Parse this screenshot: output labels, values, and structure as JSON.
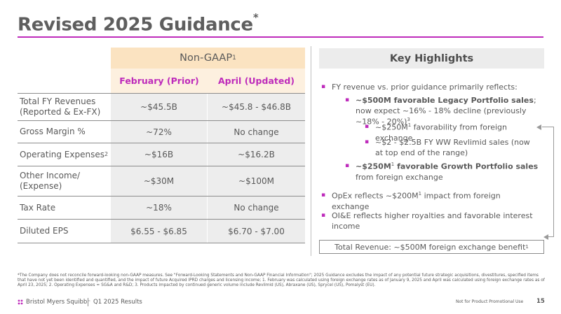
{
  "title": {
    "main": "Revised 2025 Guidance",
    "mark": "*"
  },
  "table": {
    "header_top": "Non-GAAP",
    "header_top_sup": "1",
    "col_prior": "February (Prior)",
    "col_updated": "April (Updated)",
    "rows": [
      {
        "label": "Total FY Revenues (Reported & Ex-FX)",
        "label_sup": "",
        "prior": "~$45.5B",
        "updated": "~$45.8 - $46.8B"
      },
      {
        "label": "Gross Margin %",
        "label_sup": "",
        "prior": "~72%",
        "updated": "No change"
      },
      {
        "label": "Operating Expenses",
        "label_sup": "2",
        "prior": "~$16B",
        "updated": "~$16.2B"
      },
      {
        "label": "Other Income/ (Expense)",
        "label_sup": "",
        "prior": "~$30M",
        "updated": "~$100M"
      },
      {
        "label": "Tax Rate",
        "label_sup": "",
        "prior": "~18%",
        "updated": "No change"
      },
      {
        "label": "Diluted EPS",
        "label_sup": "",
        "prior": "$6.55 - $6.85",
        "updated": "$6.70 - $7.00"
      }
    ]
  },
  "highlights": {
    "heading": "Key Highlights",
    "h1": "FY revenue vs. prior guidance primarily reflects:",
    "h2_bold": "~$500M favorable Legacy Portfolio sales",
    "h2_rest": "; now expect ~16% - 18% decline (previously ~18% - 20%)",
    "h2_sup": "3",
    "h3_a": "~$250M",
    "h3_sup": "1",
    "h3_b": " favorability from foreign exchange",
    "h4": "~$2 - $2.5B FY WW Revlimid sales (now at top end of the range)",
    "h5_bold_a": "~$250M",
    "h5_sup": "1",
    "h5_bold_b": " favorable Growth Portfolio sales",
    "h5_rest": " from foreign exchange",
    "h6_a": "OpEx reflects ~$200M",
    "h6_sup": "1",
    "h6_b": " impact from foreign exchange",
    "h7": "OI&E reflects higher royalties and favorable interest income",
    "total": "Total Revenue: ~$500M foreign exchange benefit",
    "total_sup": "1"
  },
  "footnote": "*The Company does not reconcile forward-looking non-GAAP measures. See \"Forward-Looking Statements and Non-GAAP Financial Information\"; 2025 Guidance excludes the impact of any potential future strategic acquisitions, divestitures, specified items that have not yet been identified and quantified, and the impact of future Acquired IPRD charges and licensing income; 1. February was calculated using foreign exchange rates as of January 9, 2025 and April was calculated using foreign exchange rates as of April 23, 2025; 2. Operating Expenses = SG&A and R&D; 3. Products impacted by continued generic volume include Revlimid (US), Abraxane (US), Sprycel (US), Pomalyst (EU).",
  "footer": {
    "company": "Bristol Myers Squibb",
    "trademark": "™",
    "deck": "Q1 2025 Results",
    "note": "Not for Product Promotional Use",
    "page": "15"
  },
  "colors": {
    "accent": "#be2bbb",
    "header_bg": "#fbe3c1",
    "subheader_bg": "#fdf0df",
    "cell_bg": "#ededed"
  }
}
